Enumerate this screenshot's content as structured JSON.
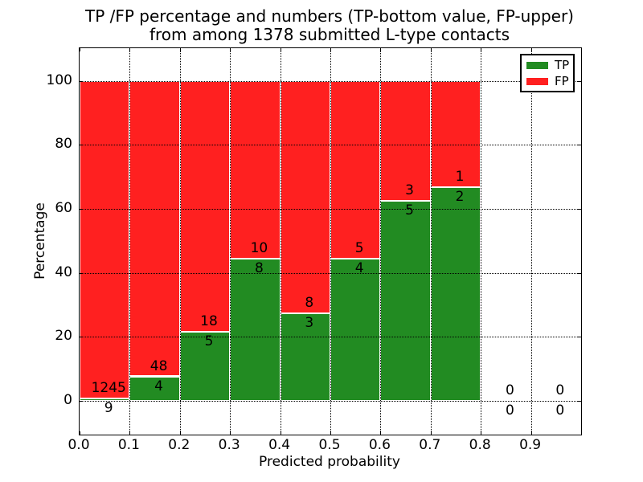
{
  "title": {
    "line1": "TP /FP percentage and numbers (TP-bottom value, FP-upper)",
    "line2": "from among 1378 submitted L-type contacts"
  },
  "chart_data": {
    "type": "bar",
    "stacked": true,
    "title": "TP /FP percentage and numbers (TP-bottom value, FP-upper)\nfrom among 1378 submitted L-type contacts",
    "xlabel": "Predicted probability",
    "ylabel": "Percentage",
    "xlim": [
      0.0,
      1.0
    ],
    "ylim": [
      -10.5,
      110.2
    ],
    "xticks": [
      "0.0",
      "0.1",
      "0.2",
      "0.3",
      "0.4",
      "0.5",
      "0.6",
      "0.7",
      "0.8",
      "0.9"
    ],
    "yticks": [
      0,
      20,
      40,
      60,
      80,
      100
    ],
    "grid": true,
    "grid_style": "dotted",
    "total_submitted": 1378,
    "colors": {
      "tp": "#228b22",
      "fp": "#ff2020",
      "bar_edge": "#ffffff"
    },
    "legend": {
      "position": "upper right",
      "entries": [
        {
          "label": "TP",
          "color": "#228b22"
        },
        {
          "label": "FP",
          "color": "#ff2020"
        }
      ]
    },
    "bins": [
      {
        "x0": 0.0,
        "x1": 0.1,
        "tp": 9,
        "fp": 1245,
        "tp_pct": 0.7
      },
      {
        "x0": 0.1,
        "x1": 0.2,
        "tp": 4,
        "fp": 48,
        "tp_pct": 7.7
      },
      {
        "x0": 0.2,
        "x1": 0.3,
        "tp": 5,
        "fp": 18,
        "tp_pct": 21.7
      },
      {
        "x0": 0.3,
        "x1": 0.4,
        "tp": 8,
        "fp": 10,
        "tp_pct": 44.4
      },
      {
        "x0": 0.4,
        "x1": 0.5,
        "tp": 3,
        "fp": 8,
        "tp_pct": 27.3
      },
      {
        "x0": 0.5,
        "x1": 0.6,
        "tp": 4,
        "fp": 5,
        "tp_pct": 44.4
      },
      {
        "x0": 0.6,
        "x1": 0.7,
        "tp": 5,
        "fp": 3,
        "tp_pct": 62.5
      },
      {
        "x0": 0.7,
        "x1": 0.8,
        "tp": 2,
        "fp": 1,
        "tp_pct": 66.7
      },
      {
        "x0": 0.8,
        "x1": 0.9,
        "tp": 0,
        "fp": 0,
        "tp_pct": 0
      },
      {
        "x0": 0.9,
        "x1": 1.0,
        "tp": 0,
        "fp": 0,
        "tp_pct": 0
      }
    ]
  }
}
